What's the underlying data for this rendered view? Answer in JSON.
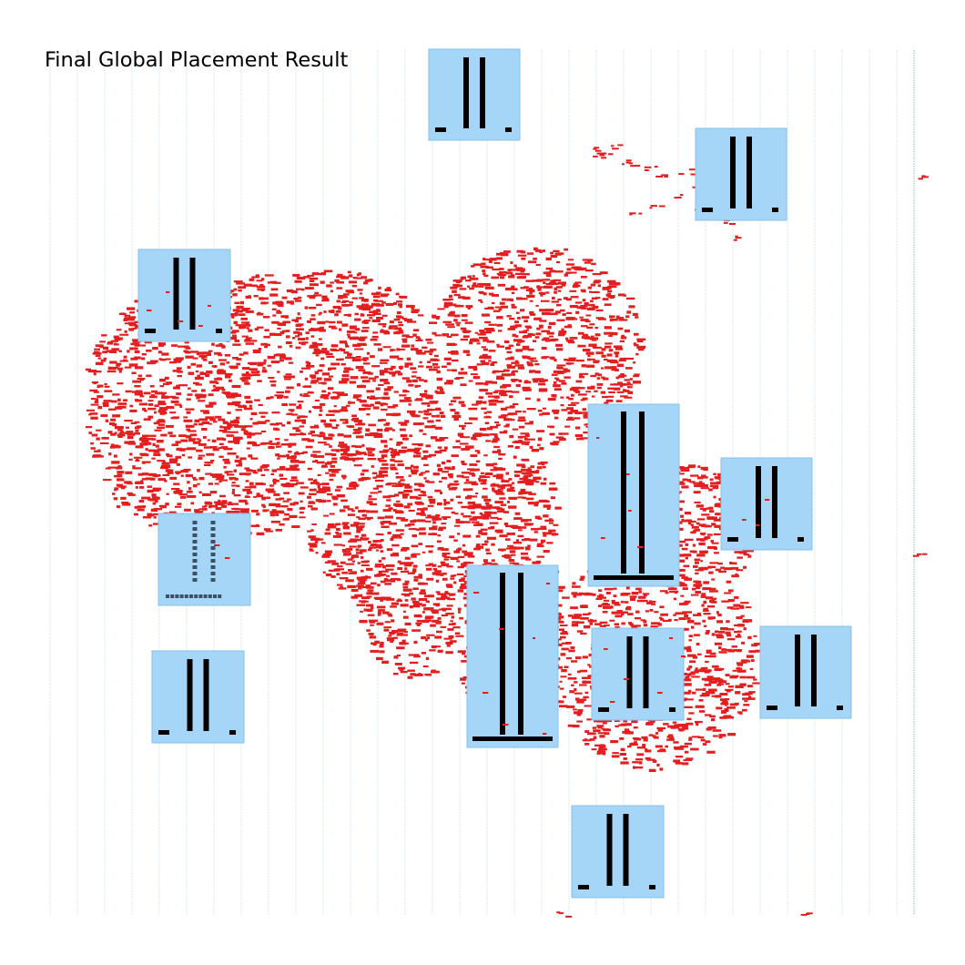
{
  "title": "Final Global Placement Result",
  "colors": {
    "background": "#ffffff",
    "macro_fill": "#a5d5f7",
    "macro_stroke": "#86c1ea",
    "grid_line": "#a9d3f0",
    "cell_fill": "#e41e1e",
    "pin_fill": "#000000",
    "pin_dotted_fill": "#3c4f66"
  }
}
